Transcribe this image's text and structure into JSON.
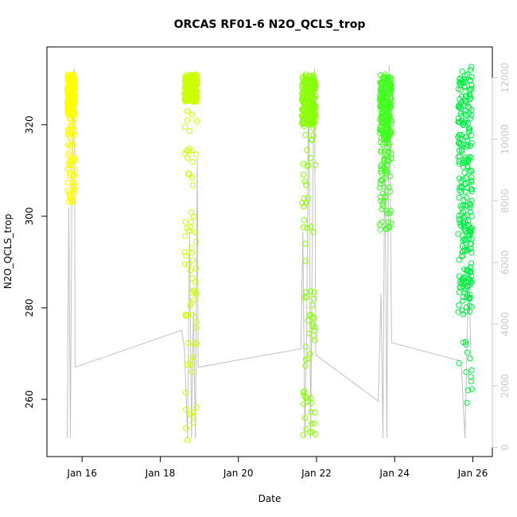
{
  "chart_data": {
    "type": "scatter",
    "title": "ORCAS RF01-6 N2O_QCLS_trop",
    "xlabel": "Date",
    "ylabel": "N2O_QCLS_trop",
    "x_unit": "day of January 2016",
    "xlim": [
      15.1,
      26.5
    ],
    "ylim": [
      247.5,
      337.0
    ],
    "y2lim": [
      -300,
      13000
    ],
    "x_ticks": [
      {
        "value": 16,
        "label": "Jan 16"
      },
      {
        "value": 18,
        "label": "Jan 18"
      },
      {
        "value": 20,
        "label": "Jan 20"
      },
      {
        "value": 22,
        "label": "Jan 22"
      },
      {
        "value": 24,
        "label": "Jan 24"
      },
      {
        "value": 26,
        "label": "Jan 26"
      }
    ],
    "y_ticks": [
      {
        "value": 260,
        "label": "260"
      },
      {
        "value": 280,
        "label": "280"
      },
      {
        "value": 300,
        "label": "300"
      },
      {
        "value": 320,
        "label": "320"
      }
    ],
    "y2_ticks": [
      {
        "value": 0,
        "label": "0"
      },
      {
        "value": 2000,
        "label": "2000"
      },
      {
        "value": 4000,
        "label": "4000"
      },
      {
        "value": 6000,
        "label": "6000"
      },
      {
        "value": 8000,
        "label": "8000"
      },
      {
        "value": 10000,
        "label": "10000"
      },
      {
        "value": 12000,
        "label": "12000"
      }
    ],
    "grid": false,
    "series": [
      {
        "color": "#ffff00",
        "x_range": [
          15.62,
          15.82
        ],
        "y_dense": [
          322,
          331
        ],
        "y_sparse": [
          303,
          322
        ]
      },
      {
        "color": "#ccff00",
        "x_range": [
          18.62,
          18.95
        ],
        "y_dense": [
          325,
          331
        ],
        "y_sparse": [
          251,
          325
        ]
      },
      {
        "color": "#88ff00",
        "x_range": [
          21.62,
          21.98
        ],
        "y_dense": [
          320,
          331
        ],
        "y_sparse": [
          252,
          320
        ]
      },
      {
        "color": "#44ff22",
        "x_range": [
          23.62,
          23.92
        ],
        "y_dense": [
          317,
          331
        ],
        "y_sparse": [
          297,
          317
        ]
      },
      {
        "color": "#00ee44",
        "x_range": [
          25.62,
          25.98
        ],
        "y_dense": [
          280,
          331
        ],
        "y_sparse": [
          258,
          335
        ]
      }
    ],
    "altitude_line": {
      "color": "#c0c0c0",
      "path": [
        [
          15.62,
          300
        ],
        [
          15.66,
          7800
        ],
        [
          15.7,
          300
        ],
        [
          15.74,
          8600
        ],
        [
          15.78,
          11200
        ],
        [
          15.8,
          12300
        ],
        [
          15.82,
          2600
        ],
        [
          18.55,
          3800
        ],
        [
          18.62,
          3200
        ],
        [
          18.66,
          1800
        ],
        [
          18.7,
          300
        ],
        [
          18.75,
          7000
        ],
        [
          18.8,
          300
        ],
        [
          18.85,
          4400
        ],
        [
          18.9,
          300
        ],
        [
          18.95,
          9400
        ],
        [
          18.97,
          2600
        ],
        [
          21.6,
          3200
        ],
        [
          21.65,
          7000
        ],
        [
          21.7,
          300
        ],
        [
          21.75,
          4000
        ],
        [
          21.8,
          12200
        ],
        [
          21.85,
          300
        ],
        [
          21.9,
          8000
        ],
        [
          21.95,
          12300
        ],
        [
          21.98,
          3000
        ],
        [
          23.58,
          1500
        ],
        [
          23.65,
          5000
        ],
        [
          23.7,
          300
        ],
        [
          23.75,
          10500
        ],
        [
          23.8,
          300
        ],
        [
          23.86,
          12400
        ],
        [
          23.92,
          3400
        ],
        [
          25.7,
          2800
        ],
        [
          25.8,
          300
        ],
        [
          25.9,
          6000
        ],
        [
          25.95,
          2900
        ]
      ]
    }
  }
}
